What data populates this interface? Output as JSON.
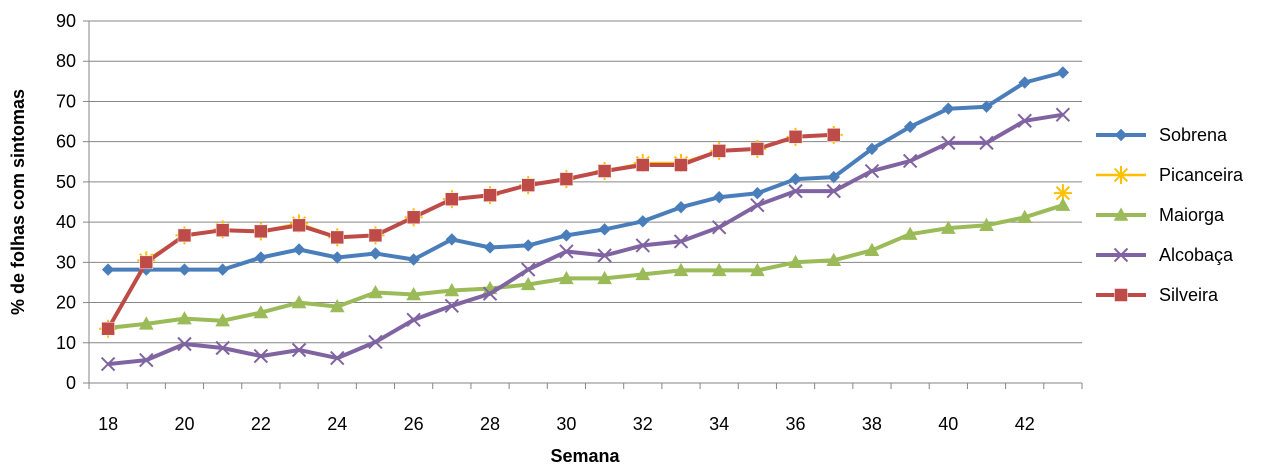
{
  "chart_data": {
    "type": "line",
    "title": "",
    "xlabel": "Semana",
    "ylabel": "% de folhas com sintomas",
    "xlim": [
      18,
      43
    ],
    "ylim": [
      0,
      90
    ],
    "y_ticks": [
      0,
      10,
      20,
      30,
      40,
      50,
      60,
      70,
      80,
      90
    ],
    "x_tick_labels": [
      18,
      20,
      22,
      24,
      26,
      28,
      30,
      32,
      34,
      36,
      38,
      40,
      42
    ],
    "grid": "horizontal",
    "legend_position": "right",
    "x": [
      18,
      19,
      20,
      21,
      22,
      23,
      24,
      25,
      26,
      27,
      28,
      29,
      30,
      31,
      32,
      33,
      34,
      35,
      36,
      37,
      38,
      39,
      40,
      41,
      42,
      43
    ],
    "series": [
      {
        "name": "Sobrena",
        "color": "#4a7ebb",
        "marker": "diamond",
        "values": [
          28.2,
          28.2,
          28.2,
          28.2,
          31.2,
          33.2,
          31.2,
          32.2,
          30.7,
          35.7,
          33.7,
          34.2,
          36.7,
          38.2,
          40.2,
          43.7,
          46.2,
          47.2,
          50.7,
          51.2,
          58.2,
          63.7,
          68.2,
          68.7,
          74.7,
          77.2
        ]
      },
      {
        "name": "Picanceira",
        "color": "#ffc000",
        "marker": "star",
        "values": [
          13.5,
          30.5,
          36.7,
          38.2,
          37.7,
          39.7,
          36.2,
          36.7,
          41.2,
          45.7,
          46.7,
          49.2,
          50.7,
          52.7,
          54.7,
          54.7,
          57.7,
          58.2,
          61.2,
          61.7,
          null,
          null,
          null,
          null,
          null,
          47.2
        ]
      },
      {
        "name": "Maiorga",
        "color": "#9bbb59",
        "marker": "triangle",
        "values": [
          13.7,
          14.7,
          16.0,
          15.5,
          17.5,
          20.0,
          19.0,
          22.5,
          22.0,
          23.0,
          23.5,
          24.5,
          26.0,
          26.0,
          27.0,
          28.0,
          28.0,
          28.0,
          30.0,
          30.5,
          33.0,
          37.0,
          38.5,
          39.2,
          41.2,
          44.2
        ]
      },
      {
        "name": "Alcobaça",
        "color": "#8064a2",
        "marker": "x",
        "values": [
          4.7,
          5.7,
          9.7,
          8.7,
          6.7,
          8.2,
          6.2,
          10.2,
          15.7,
          19.2,
          22.2,
          28.2,
          32.7,
          31.7,
          34.2,
          35.2,
          38.7,
          44.2,
          47.7,
          47.7,
          52.7,
          55.2,
          59.7,
          59.7,
          65.2,
          66.7
        ]
      },
      {
        "name": "Silveira",
        "color": "#be4b48",
        "marker": "square",
        "values": [
          13.5,
          30.0,
          36.7,
          38.0,
          37.7,
          39.2,
          36.2,
          36.7,
          41.2,
          45.7,
          46.7,
          49.2,
          50.7,
          52.7,
          54.2,
          54.2,
          57.7,
          58.2,
          61.2,
          61.7,
          null,
          null,
          null,
          null,
          null,
          null
        ]
      }
    ]
  }
}
